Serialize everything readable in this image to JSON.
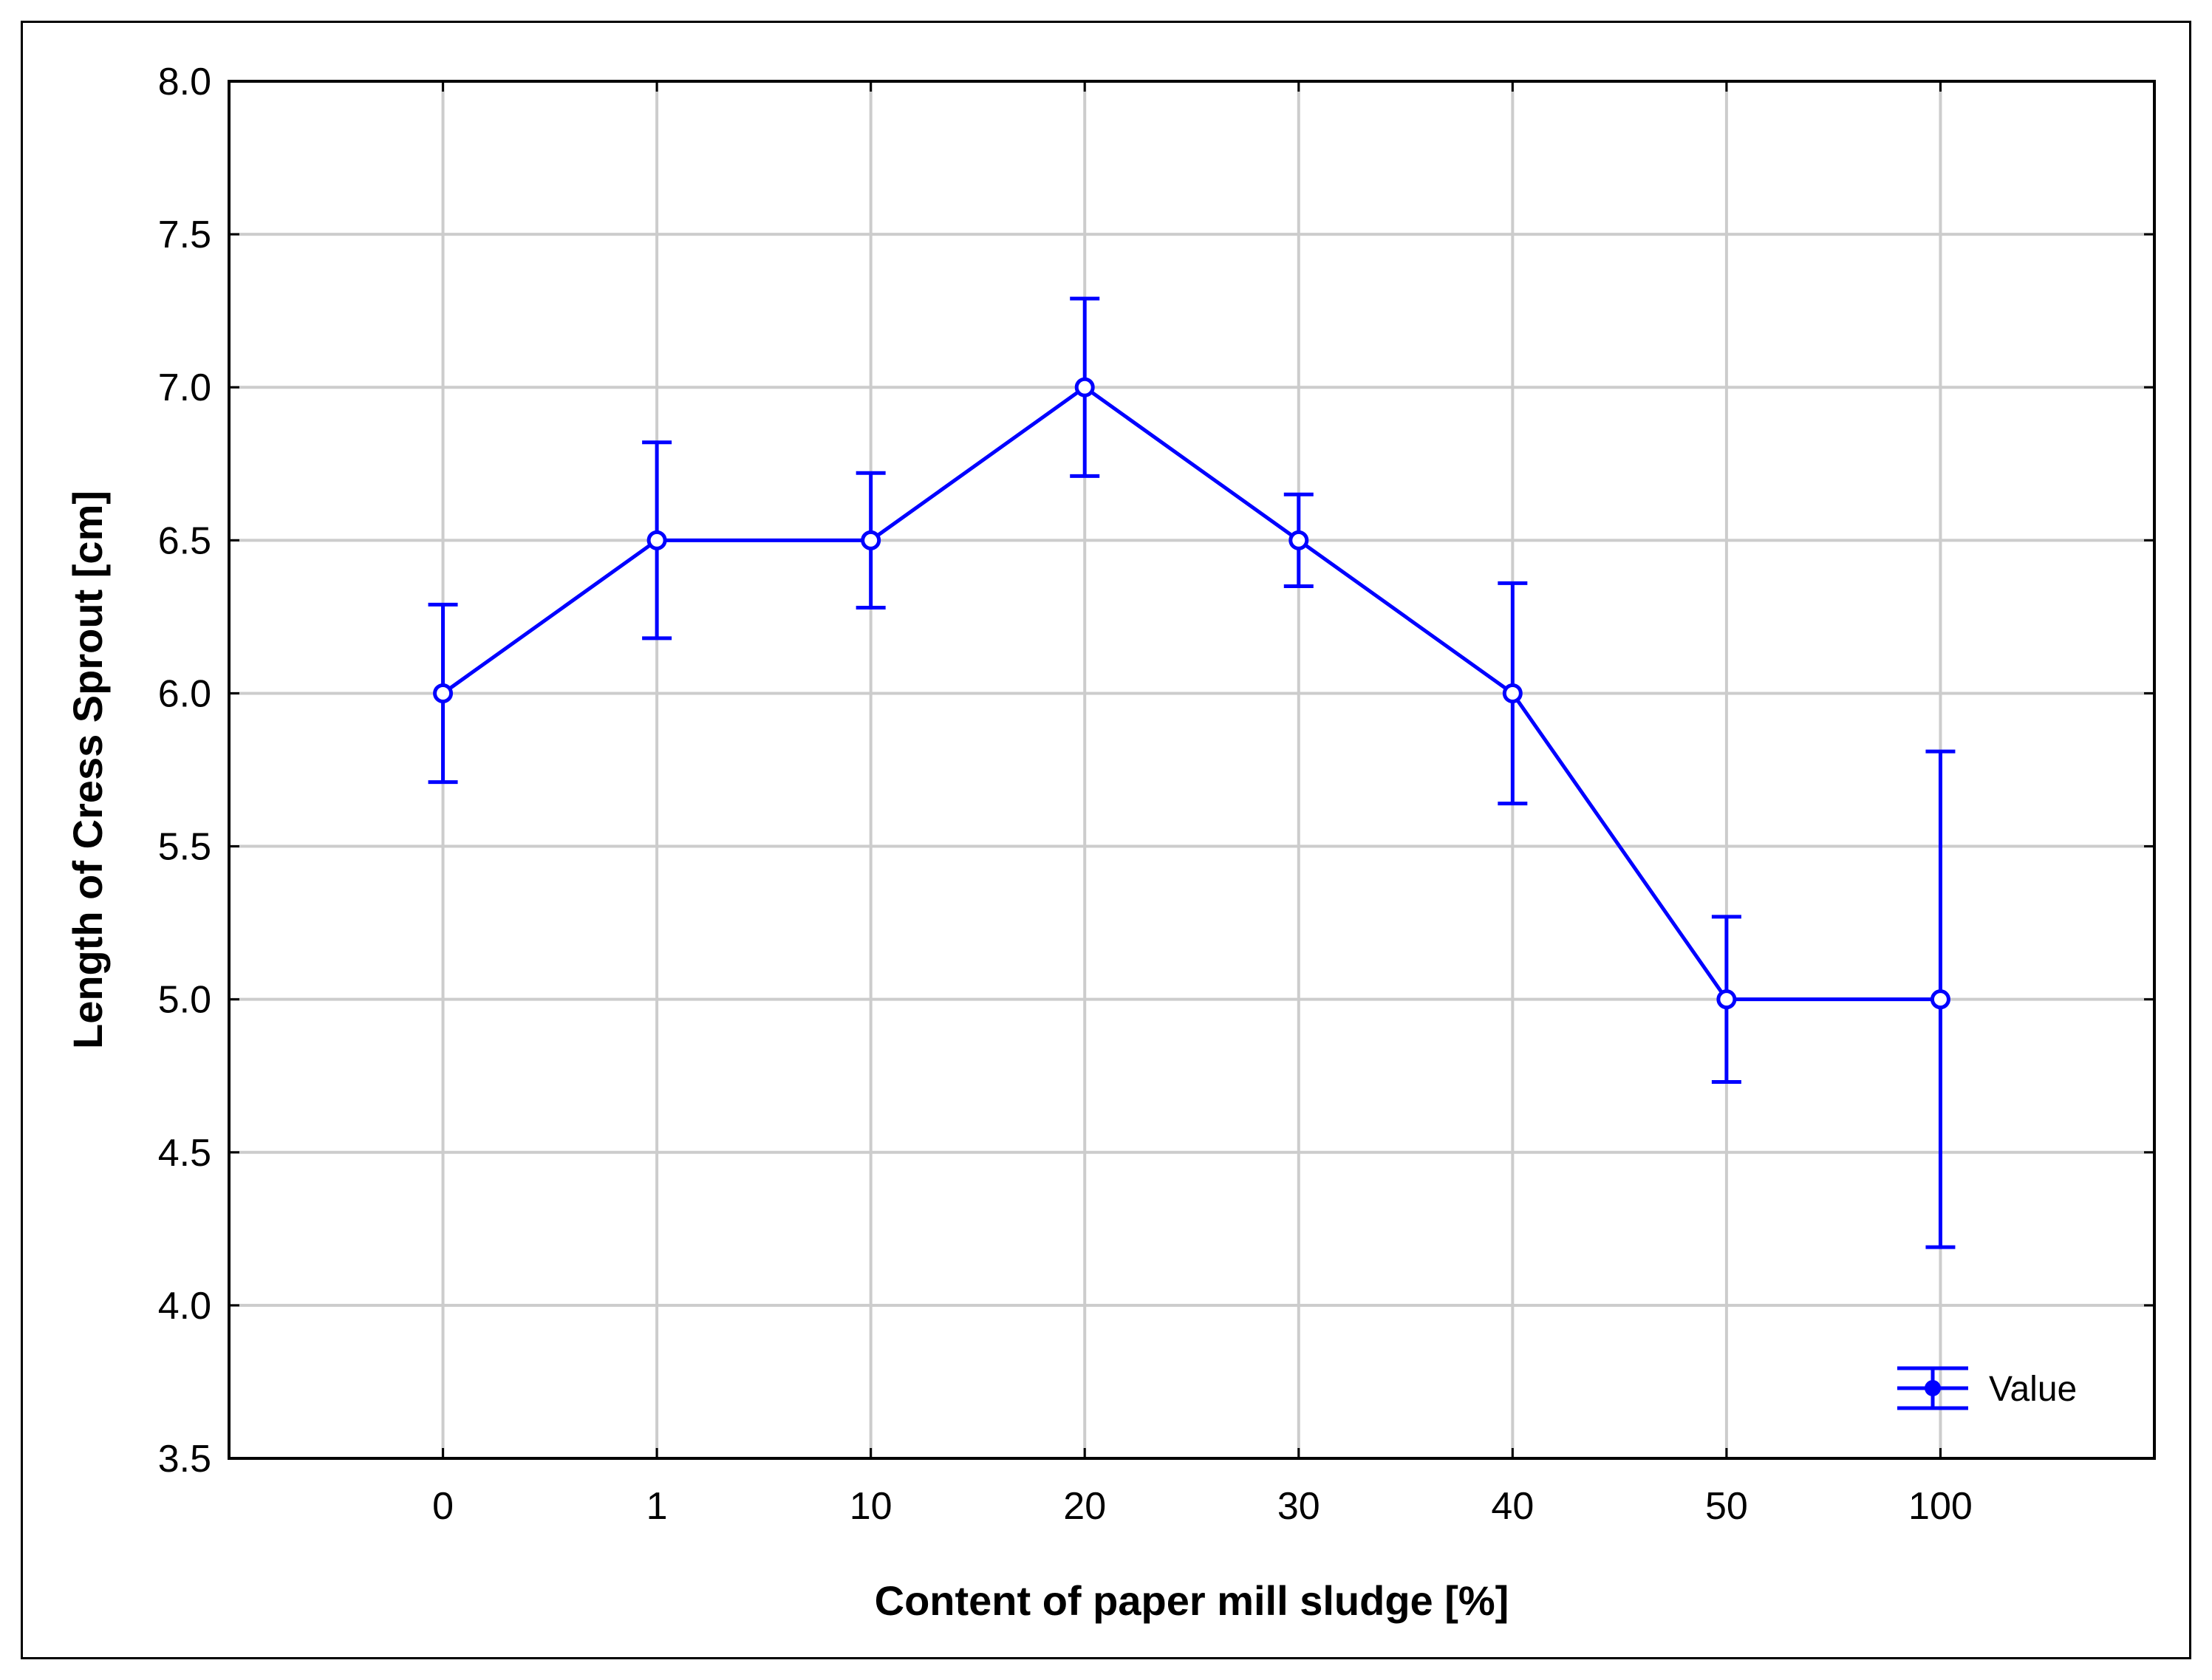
{
  "chart_data": {
    "type": "line",
    "title": "",
    "xlabel": "Content of paper mill sludge [%]",
    "ylabel": "Length of Cress Sprout [cm]",
    "categories": [
      "0",
      "1",
      "10",
      "20",
      "30",
      "40",
      "50",
      "100"
    ],
    "ylim": [
      3.5,
      8.0
    ],
    "yticks": [
      "3.5",
      "4.0",
      "4.5",
      "5.0",
      "5.5",
      "6.0",
      "6.5",
      "7.0",
      "7.5",
      "8.0"
    ],
    "grid": true,
    "legend_position": "bottom-right",
    "series": [
      {
        "name": "Value",
        "color": "#0000ff",
        "values": [
          6.0,
          6.5,
          6.5,
          7.0,
          6.5,
          6.0,
          5.0,
          5.0
        ],
        "error_upper": [
          6.29,
          6.82,
          6.72,
          7.29,
          6.65,
          6.36,
          5.27,
          5.81
        ],
        "error_lower": [
          5.71,
          6.18,
          6.28,
          6.71,
          6.35,
          5.64,
          4.73,
          4.19
        ]
      }
    ]
  }
}
